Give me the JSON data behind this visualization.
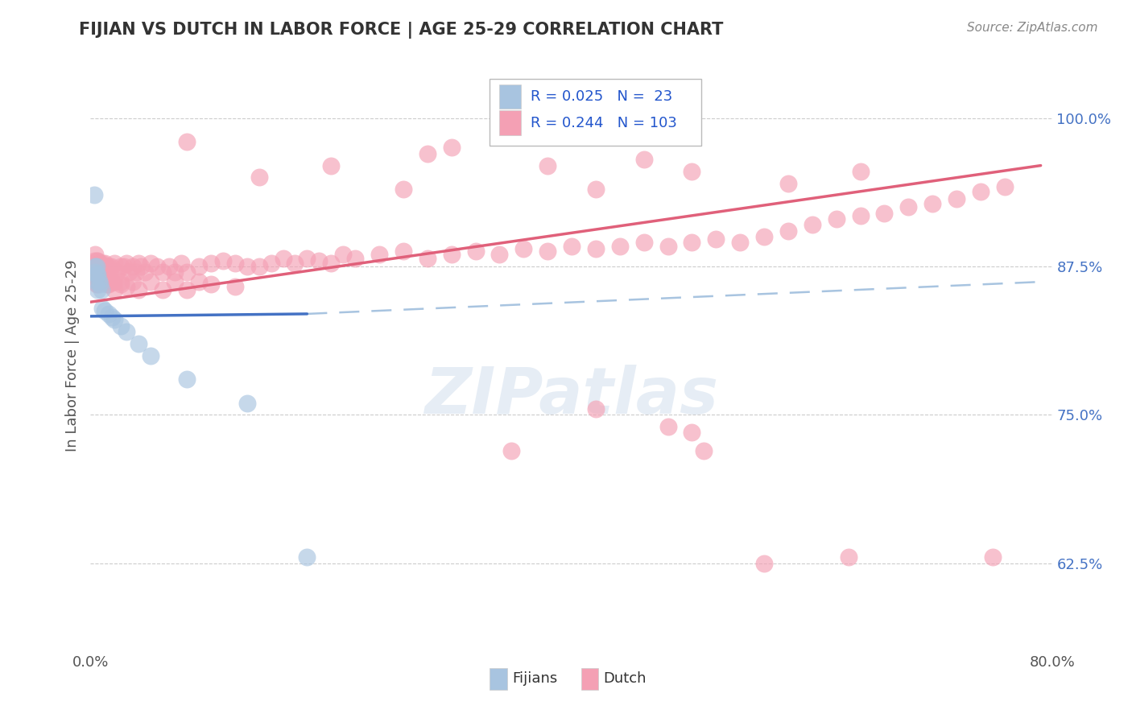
{
  "title": "FIJIAN VS DUTCH IN LABOR FORCE | AGE 25-29 CORRELATION CHART",
  "source": "Source: ZipAtlas.com",
  "ylabel": "In Labor Force | Age 25-29",
  "right_yticks": [
    0.625,
    0.75,
    0.875,
    1.0
  ],
  "right_yticklabels": [
    "62.5%",
    "75.0%",
    "87.5%",
    "100.0%"
  ],
  "xmin": 0.0,
  "xmax": 0.8,
  "ymin": 0.555,
  "ymax": 1.045,
  "legend_R_fijian": "0.025",
  "legend_N_fijian": "23",
  "legend_R_dutch": "0.244",
  "legend_N_dutch": "103",
  "fijian_color": "#a8c4e0",
  "dutch_color": "#f4a0b4",
  "fijian_line_color": "#4472c4",
  "dutch_line_color": "#e0607a",
  "fijian_x": [
    0.003,
    0.004,
    0.004,
    0.005,
    0.005,
    0.005,
    0.006,
    0.006,
    0.007,
    0.008,
    0.009,
    0.01,
    0.012,
    0.015,
    0.018,
    0.02,
    0.025,
    0.03,
    0.04,
    0.05,
    0.08,
    0.13,
    0.18
  ],
  "fijian_y": [
    0.935,
    0.875,
    0.87,
    0.875,
    0.868,
    0.862,
    0.868,
    0.855,
    0.863,
    0.86,
    0.855,
    0.84,
    0.838,
    0.835,
    0.832,
    0.83,
    0.825,
    0.82,
    0.81,
    0.8,
    0.78,
    0.76,
    0.63
  ],
  "dutch_x": [
    0.003,
    0.003,
    0.004,
    0.004,
    0.005,
    0.005,
    0.005,
    0.006,
    0.006,
    0.006,
    0.007,
    0.007,
    0.008,
    0.008,
    0.009,
    0.01,
    0.01,
    0.011,
    0.012,
    0.012,
    0.013,
    0.014,
    0.015,
    0.015,
    0.016,
    0.017,
    0.018,
    0.02,
    0.02,
    0.022,
    0.025,
    0.025,
    0.028,
    0.03,
    0.032,
    0.035,
    0.038,
    0.04,
    0.042,
    0.045,
    0.05,
    0.055,
    0.06,
    0.065,
    0.07,
    0.075,
    0.08,
    0.09,
    0.1,
    0.11,
    0.12,
    0.13,
    0.14,
    0.15,
    0.16,
    0.17,
    0.18,
    0.19,
    0.2,
    0.21,
    0.22,
    0.24,
    0.26,
    0.28,
    0.3,
    0.32,
    0.34,
    0.36,
    0.38,
    0.4,
    0.42,
    0.44,
    0.46,
    0.48,
    0.5,
    0.52,
    0.54,
    0.56,
    0.58,
    0.6,
    0.62,
    0.64,
    0.66,
    0.68,
    0.7,
    0.72,
    0.74,
    0.76,
    0.015,
    0.02,
    0.025,
    0.03,
    0.035,
    0.04,
    0.05,
    0.06,
    0.07,
    0.08,
    0.09,
    0.1,
    0.12
  ],
  "dutch_y": [
    0.88,
    0.87,
    0.885,
    0.87,
    0.88,
    0.87,
    0.86,
    0.88,
    0.87,
    0.86,
    0.875,
    0.862,
    0.878,
    0.863,
    0.87,
    0.878,
    0.863,
    0.87,
    0.878,
    0.862,
    0.875,
    0.86,
    0.875,
    0.862,
    0.87,
    0.875,
    0.862,
    0.878,
    0.862,
    0.87,
    0.875,
    0.86,
    0.875,
    0.878,
    0.87,
    0.875,
    0.87,
    0.878,
    0.875,
    0.87,
    0.878,
    0.875,
    0.87,
    0.875,
    0.87,
    0.878,
    0.87,
    0.875,
    0.878,
    0.88,
    0.878,
    0.875,
    0.875,
    0.878,
    0.882,
    0.878,
    0.882,
    0.88,
    0.878,
    0.885,
    0.882,
    0.885,
    0.888,
    0.882,
    0.885,
    0.888,
    0.885,
    0.89,
    0.888,
    0.892,
    0.89,
    0.892,
    0.895,
    0.892,
    0.895,
    0.898,
    0.895,
    0.9,
    0.905,
    0.91,
    0.915,
    0.918,
    0.92,
    0.925,
    0.928,
    0.932,
    0.938,
    0.942,
    0.86,
    0.855,
    0.862,
    0.858,
    0.862,
    0.855,
    0.862,
    0.855,
    0.862,
    0.855,
    0.862,
    0.86,
    0.858
  ],
  "dutch_outliers_x": [
    0.35,
    0.42,
    0.48,
    0.5,
    0.51,
    0.56,
    0.63,
    0.75
  ],
  "dutch_outliers_y": [
    0.72,
    0.755,
    0.74,
    0.735,
    0.72,
    0.625,
    0.63,
    0.63
  ],
  "dutch_high_x": [
    0.08,
    0.14,
    0.2,
    0.26,
    0.28,
    0.3,
    0.38,
    0.42,
    0.46,
    0.5,
    0.58,
    0.64
  ],
  "dutch_high_y": [
    0.98,
    0.95,
    0.96,
    0.94,
    0.97,
    0.975,
    0.96,
    0.94,
    0.965,
    0.955,
    0.945,
    0.955
  ],
  "watermark_text": "ZIPatlas"
}
